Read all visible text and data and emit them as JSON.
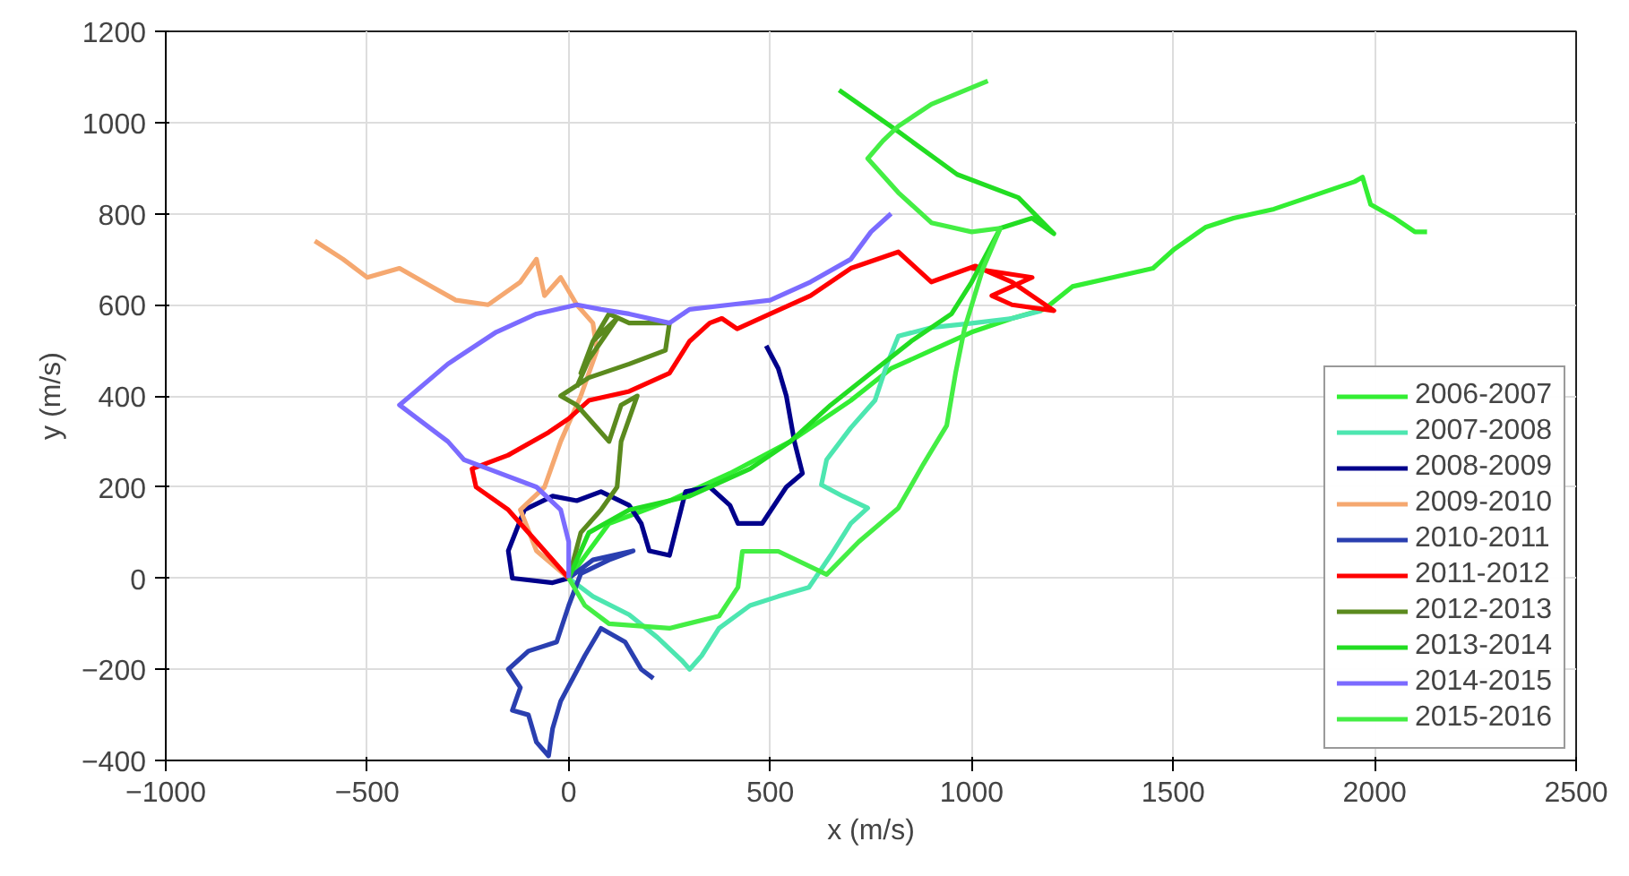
{
  "chart_data": {
    "type": "line",
    "xlabel": "x (m/s)",
    "ylabel": "y (m/s)",
    "xlim": [
      -1000,
      2500
    ],
    "ylim": [
      -400,
      1200
    ],
    "xticks": [
      -1000,
      -500,
      0,
      500,
      1000,
      1500,
      2000,
      2500
    ],
    "yticks": [
      -400,
      -200,
      0,
      200,
      400,
      600,
      800,
      1000,
      1200
    ],
    "grid": true,
    "legend": "bottom right",
    "marker": "none",
    "line_style": "solid",
    "series": [
      {
        "name": "2006-2007",
        "color": "#33ee33",
        "x": [
          0,
          100,
          250,
          400,
          550,
          700,
          800,
          900,
          1000,
          1100,
          1180,
          1250,
          1350,
          1450,
          1500,
          1580,
          1650,
          1750,
          1850,
          1950,
          1970,
          1990,
          2050,
          2100,
          2130
        ],
        "values": [
          0,
          120,
          170,
          230,
          300,
          390,
          460,
          500,
          540,
          570,
          590,
          640,
          660,
          680,
          720,
          770,
          790,
          810,
          840,
          870,
          880,
          820,
          790,
          760,
          760
        ]
      },
      {
        "name": "2007-2008",
        "color": "#4de6b0",
        "x": [
          0,
          60,
          150,
          220,
          280,
          300,
          330,
          373,
          450,
          520,
          596,
          650,
          700,
          742,
          680,
          627,
          640,
          700,
          760,
          790,
          818,
          900,
          996,
          1100,
          1173
        ],
        "values": [
          0,
          -40,
          -80,
          -130,
          -180,
          -200,
          -170,
          -110,
          -60,
          -40,
          -20,
          50,
          120,
          154,
          180,
          205,
          260,
          330,
          390,
          470,
          531,
          550,
          559,
          570,
          587
        ]
      },
      {
        "name": "2008-2009",
        "color": "#00008b",
        "x": [
          0,
          -40,
          -140,
          -150,
          -110,
          -40,
          20,
          80,
          150,
          180,
          200,
          250,
          270,
          290,
          350,
          400,
          420,
          480,
          540,
          580,
          560,
          540,
          520,
          490
        ],
        "values": [
          0,
          -10,
          0,
          60,
          150,
          180,
          170,
          190,
          160,
          120,
          60,
          50,
          120,
          190,
          200,
          160,
          120,
          120,
          200,
          230,
          300,
          400,
          460,
          510
        ]
      },
      {
        "name": "2009-2010",
        "color": "#f5a870",
        "x": [
          0,
          -80,
          -120,
          -60,
          -20,
          30,
          70,
          60,
          20,
          -20,
          -60,
          -80,
          -120,
          -200,
          -280,
          -340,
          -420,
          -500,
          -560,
          -630
        ],
        "values": [
          0,
          60,
          150,
          200,
          300,
          400,
          500,
          560,
          600,
          660,
          620,
          700,
          650,
          600,
          610,
          640,
          680,
          660,
          700,
          740
        ]
      },
      {
        "name": "2010-2011",
        "color": "#2a3fb0",
        "x": [
          0,
          60,
          160,
          100,
          30,
          0,
          -30,
          -100,
          -150,
          -120,
          -140,
          -100,
          -80,
          -50,
          -40,
          -20,
          10,
          40,
          80,
          140,
          180,
          210
        ],
        "values": [
          0,
          40,
          60,
          40,
          10,
          -60,
          -140,
          -160,
          -200,
          -240,
          -290,
          -300,
          -360,
          -390,
          -330,
          -270,
          -220,
          -170,
          -110,
          -140,
          -200,
          -220
        ]
      },
      {
        "name": "2011-2012",
        "color": "#ff0000",
        "x": [
          0,
          -80,
          -150,
          -230,
          -240,
          -150,
          -50,
          0,
          50,
          150,
          250,
          300,
          350,
          380,
          418,
          500,
          600,
          700,
          818,
          900,
          1009,
          1100,
          1204,
          1100,
          1050,
          1150,
          1000
        ],
        "values": [
          0,
          80,
          150,
          200,
          240,
          270,
          320,
          350,
          390,
          410,
          450,
          520,
          560,
          570,
          547,
          580,
          620,
          680,
          716,
          650,
          685,
          650,
          587,
          600,
          620,
          660,
          680
        ]
      },
      {
        "name": "2012-2013",
        "color": "#5b8a1e",
        "x": [
          0,
          30,
          80,
          120,
          130,
          150,
          170,
          130,
          100,
          60,
          20,
          -20,
          50,
          150,
          240,
          250,
          150,
          100,
          60,
          30,
          60,
          120,
          50,
          20
        ],
        "values": [
          0,
          100,
          150,
          200,
          300,
          350,
          400,
          380,
          300,
          340,
          380,
          400,
          440,
          470,
          500,
          560,
          560,
          580,
          520,
          450,
          520,
          570,
          480,
          420
        ]
      },
      {
        "name": "2013-2014",
        "color": "#22dd22",
        "x": [
          0,
          50,
          150,
          300,
          450,
          550,
          650,
          750,
          850,
          950,
          1000,
          1030,
          1071,
          1150,
          1204,
          1116,
          964,
          818,
          671
        ],
        "values": [
          0,
          100,
          150,
          180,
          240,
          300,
          380,
          450,
          520,
          580,
          650,
          700,
          768,
          790,
          756,
          835,
          886,
          980,
          1071
        ]
      },
      {
        "name": "2014-2015",
        "color": "#7b6bff",
        "x": [
          0,
          0,
          -20,
          -80,
          -200,
          -260,
          -300,
          -420,
          -300,
          -180,
          -80,
          20,
          80,
          150,
          250,
          300,
          400,
          500,
          600,
          700,
          750,
          800
        ],
        "values": [
          0,
          80,
          150,
          200,
          240,
          260,
          300,
          380,
          470,
          540,
          580,
          600,
          590,
          580,
          560,
          590,
          600,
          610,
          650,
          700,
          760,
          800
        ]
      },
      {
        "name": "2015-2016",
        "color": "#44ee44",
        "x": [
          0,
          40,
          100,
          250,
          373,
          420,
          431,
          520,
          640,
          720,
          818,
          880,
          938,
          960,
          982,
          1027,
          1071,
          1000,
          900,
          818,
          742,
          780,
          818,
          900,
          1040
        ],
        "values": [
          0,
          -60,
          -100,
          -110,
          -83,
          -20,
          59,
          59,
          8,
          80,
          154,
          250,
          335,
          450,
          547,
          677,
          768,
          760,
          780,
          846,
          921,
          960,
          992,
          1040,
          1091
        ]
      }
    ]
  }
}
